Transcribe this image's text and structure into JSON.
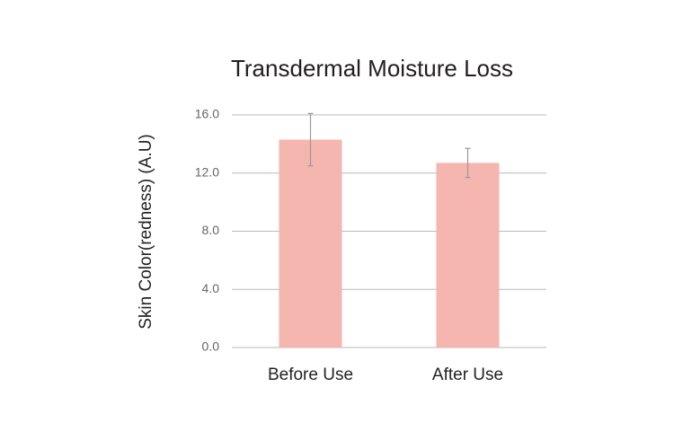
{
  "chart_data": {
    "type": "bar",
    "title": "Transdermal Moisture Loss",
    "ylabel": "Skin Color(redness) (A.U)",
    "categories": [
      "Before Use",
      "After Use"
    ],
    "values": [
      14.3,
      12.7
    ],
    "errors": [
      1.8,
      1.0
    ],
    "color": "#f4b6ae",
    "ylim": [
      0,
      16
    ],
    "yticks": [
      {
        "value": 0,
        "label": "0.0"
      },
      {
        "value": 4,
        "label": "4.0"
      },
      {
        "value": 8,
        "label": "8.0"
      },
      {
        "value": 12,
        "label": "12.0"
      },
      {
        "value": 16,
        "label": "16.0"
      }
    ],
    "grid": true
  }
}
